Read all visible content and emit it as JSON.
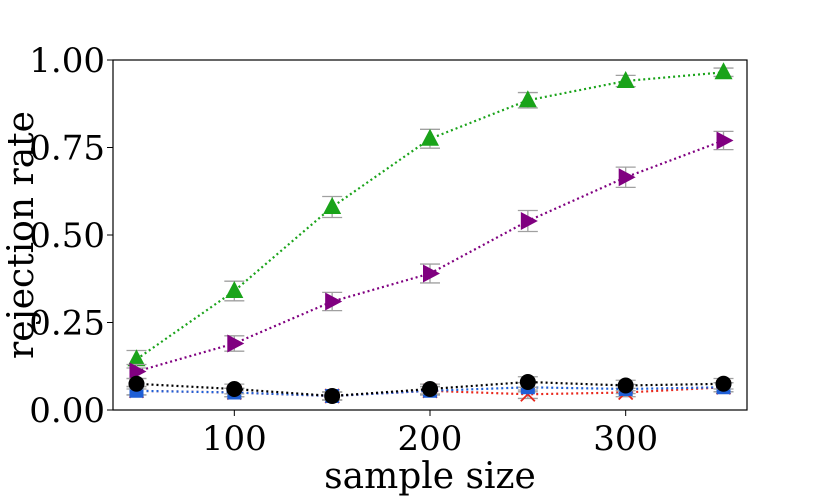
{
  "chart_data": {
    "type": "line",
    "title": "",
    "xlabel": "sample size",
    "ylabel": "rejection rate",
    "xlim": [
      38,
      362
    ],
    "ylim": [
      0,
      1
    ],
    "grid": false,
    "legend": "none",
    "x_ticks": [
      100,
      200,
      300
    ],
    "x_tick_labels": [
      "100",
      "200",
      "300"
    ],
    "y_ticks": [
      0,
      0.25,
      0.5,
      0.75,
      1.0
    ],
    "y_tick_labels": [
      "0.00",
      "0.25",
      "0.50",
      "0.75",
      "1.00"
    ],
    "x": [
      50,
      100,
      150,
      200,
      250,
      300,
      350
    ],
    "series": [
      {
        "name": "green-triangle-up",
        "color": "#1aa31a",
        "marker": "triangle-up",
        "values": [
          0.145,
          0.34,
          0.58,
          0.775,
          0.885,
          0.94,
          0.965
        ],
        "errors": [
          0.025,
          0.028,
          0.03,
          0.027,
          0.022,
          0.016,
          0.012
        ]
      },
      {
        "name": "purple-triangle-right",
        "color": "#800080",
        "marker": "triangle-right",
        "values": [
          0.11,
          0.19,
          0.31,
          0.39,
          0.54,
          0.665,
          0.77
        ],
        "errors": [
          0.02,
          0.022,
          0.026,
          0.027,
          0.03,
          0.029,
          0.026
        ]
      },
      {
        "name": "red-x",
        "color": "#e8261a",
        "marker": "x",
        "values": [
          0.055,
          0.05,
          0.04,
          0.055,
          0.045,
          0.05,
          0.065
        ],
        "errors": [
          0.012,
          0.012,
          0.011,
          0.012,
          0.012,
          0.012,
          0.013
        ]
      },
      {
        "name": "blue-square",
        "color": "#1f5fd6",
        "marker": "square",
        "values": [
          0.055,
          0.05,
          0.04,
          0.055,
          0.065,
          0.06,
          0.065
        ],
        "errors": [
          0.012,
          0.012,
          0.011,
          0.012,
          0.013,
          0.013,
          0.013
        ]
      },
      {
        "name": "black-circle",
        "color": "#000000",
        "marker": "circle",
        "values": [
          0.075,
          0.06,
          0.04,
          0.06,
          0.08,
          0.07,
          0.075
        ],
        "errors": [
          0.015,
          0.014,
          0.012,
          0.014,
          0.015,
          0.015,
          0.015
        ]
      }
    ]
  }
}
